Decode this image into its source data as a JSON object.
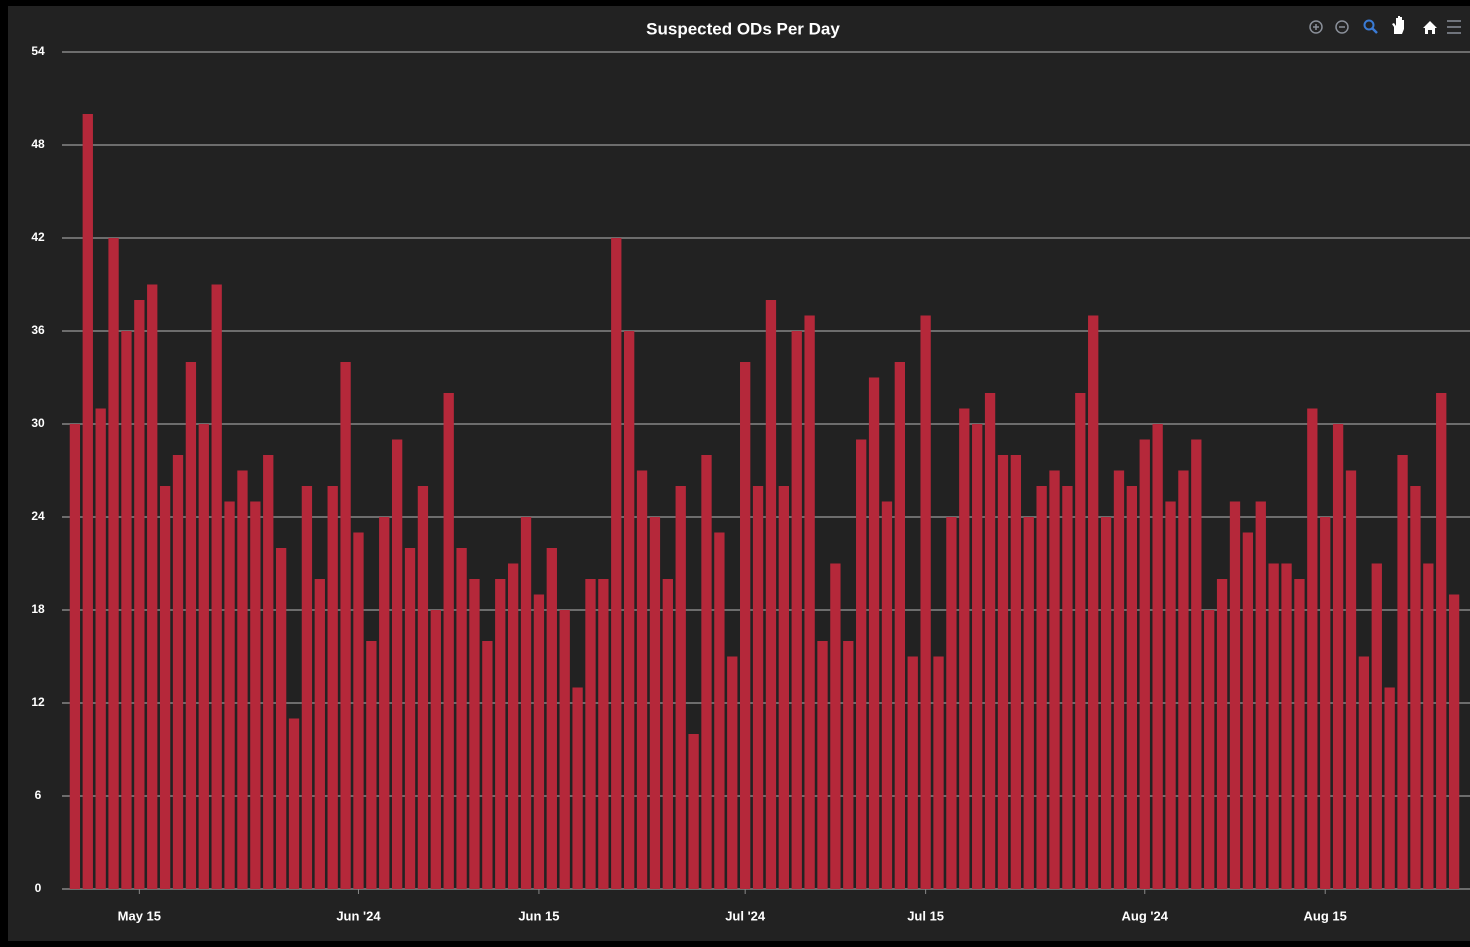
{
  "chart_data": {
    "type": "bar",
    "title": "Suspected ODs Per Day",
    "x": [
      "2024-05-10",
      "2024-05-11",
      "2024-05-12",
      "2024-05-13",
      "2024-05-14",
      "2024-05-15",
      "2024-05-16",
      "2024-05-17",
      "2024-05-18",
      "2024-05-19",
      "2024-05-20",
      "2024-05-21",
      "2024-05-22",
      "2024-05-23",
      "2024-05-24",
      "2024-05-25",
      "2024-05-26",
      "2024-05-27",
      "2024-05-28",
      "2024-05-29",
      "2024-05-30",
      "2024-05-31",
      "2024-06-01",
      "2024-06-02",
      "2024-06-03",
      "2024-06-04",
      "2024-06-05",
      "2024-06-06",
      "2024-06-07",
      "2024-06-08",
      "2024-06-09",
      "2024-06-10",
      "2024-06-11",
      "2024-06-12",
      "2024-06-13",
      "2024-06-14",
      "2024-06-15",
      "2024-06-16",
      "2024-06-17",
      "2024-06-18",
      "2024-06-19",
      "2024-06-20",
      "2024-06-21",
      "2024-06-22",
      "2024-06-23",
      "2024-06-24",
      "2024-06-25",
      "2024-06-26",
      "2024-06-27",
      "2024-06-28",
      "2024-06-29",
      "2024-06-30",
      "2024-07-01",
      "2024-07-02",
      "2024-07-03",
      "2024-07-04",
      "2024-07-05",
      "2024-07-06",
      "2024-07-07",
      "2024-07-08",
      "2024-07-09",
      "2024-07-10",
      "2024-07-11",
      "2024-07-12",
      "2024-07-13",
      "2024-07-14",
      "2024-07-15",
      "2024-07-16",
      "2024-07-17",
      "2024-07-18",
      "2024-07-19",
      "2024-07-20",
      "2024-07-21",
      "2024-07-22",
      "2024-07-23",
      "2024-07-24",
      "2024-07-25",
      "2024-07-26",
      "2024-07-27",
      "2024-07-28",
      "2024-07-29",
      "2024-07-30",
      "2024-07-31",
      "2024-08-01",
      "2024-08-02",
      "2024-08-03",
      "2024-08-04",
      "2024-08-05",
      "2024-08-06",
      "2024-08-07",
      "2024-08-08",
      "2024-08-09",
      "2024-08-10",
      "2024-08-11",
      "2024-08-12",
      "2024-08-13",
      "2024-08-14",
      "2024-08-15",
      "2024-08-16",
      "2024-08-17",
      "2024-08-18",
      "2024-08-19",
      "2024-08-20",
      "2024-08-21",
      "2024-08-22",
      "2024-08-23",
      "2024-08-24",
      "2024-08-25"
    ],
    "values": [
      30,
      50,
      31,
      42,
      36,
      38,
      39,
      26,
      28,
      34,
      30,
      39,
      25,
      27,
      25,
      28,
      22,
      11,
      26,
      20,
      26,
      34,
      23,
      16,
      24,
      29,
      22,
      26,
      18,
      32,
      22,
      20,
      16,
      20,
      21,
      24,
      19,
      22,
      18,
      13,
      20,
      20,
      42,
      36,
      27,
      24,
      20,
      26,
      10,
      28,
      23,
      15,
      34,
      26,
      38,
      26,
      36,
      37,
      16,
      21,
      16,
      29,
      33,
      25,
      34,
      15,
      37,
      15,
      24,
      31,
      30,
      32,
      28,
      28,
      24,
      26,
      27,
      26,
      32,
      37,
      24,
      27,
      26,
      29,
      30,
      25,
      27,
      29,
      18,
      20,
      25,
      23,
      25,
      21,
      21,
      20,
      31,
      24,
      30,
      27,
      15,
      21,
      13,
      28,
      26,
      21,
      32,
      19
    ],
    "color": "#b5283a",
    "xlim": [
      "2024-05-09",
      "2024-08-26"
    ],
    "xticks": [
      {
        "value": "2024-05-15",
        "label": "May 15"
      },
      {
        "value": "2024-06-01",
        "label": "Jun '24"
      },
      {
        "value": "2024-06-15",
        "label": "Jun 15"
      },
      {
        "value": "2024-07-01",
        "label": "Jul '24"
      },
      {
        "value": "2024-07-15",
        "label": "Jul 15"
      },
      {
        "value": "2024-08-01",
        "label": "Aug '24"
      },
      {
        "value": "2024-08-15",
        "label": "Aug 15"
      }
    ],
    "ylim": [
      0,
      54
    ],
    "yticks": [
      0,
      6,
      12,
      18,
      24,
      30,
      36,
      42,
      48,
      54
    ],
    "grid": true
  }
}
